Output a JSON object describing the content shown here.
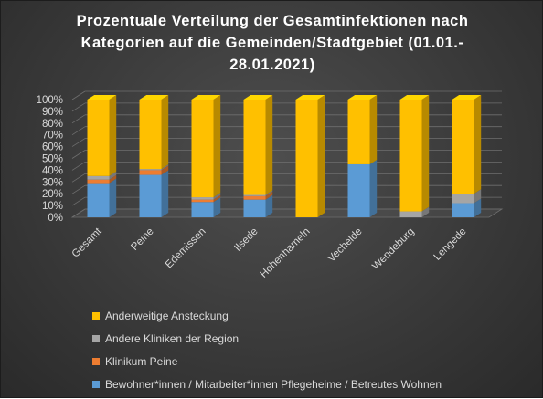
{
  "chart_data": {
    "type": "bar",
    "stacked": true,
    "percent": true,
    "three_d": true,
    "title_lines": [
      "Prozentuale Verteilung der Gesamtinfektionen nach",
      "Kategorien auf die Gemeinden/Stadtgebiet (01.01.-",
      "28.01.2021)"
    ],
    "categories": [
      "Gesamt",
      "Peine",
      "Edemissen",
      "Ilsede",
      "Hohenhameln",
      "Vechelde",
      "Wendeburg",
      "Lengede"
    ],
    "series": [
      {
        "name": "Bewohner*innen / Mitarbeiter*innen Pflegeheime / Betreutes Wohnen",
        "color": "#5b9bd5",
        "values": [
          29,
          36,
          13,
          15,
          0,
          45,
          0,
          12
        ]
      },
      {
        "name": "Klinikum Peine",
        "color": "#ed7d31",
        "values": [
          3,
          4,
          2,
          3,
          0,
          0,
          0,
          0
        ]
      },
      {
        "name": "Andere Kliniken der Region",
        "color": "#a5a5a5",
        "values": [
          3,
          1,
          2,
          1,
          0,
          0,
          5,
          8
        ]
      },
      {
        "name": "Anderweitige Ansteckung",
        "color": "#ffc000",
        "values": [
          65,
          59,
          83,
          81,
          100,
          55,
          95,
          80
        ]
      }
    ],
    "y_ticks": [
      "0%",
      "10%",
      "20%",
      "30%",
      "40%",
      "50%",
      "60%",
      "70%",
      "80%",
      "90%",
      "100%"
    ],
    "ylim": [
      0,
      100
    ],
    "grid": true,
    "legend_position": "bottom"
  }
}
